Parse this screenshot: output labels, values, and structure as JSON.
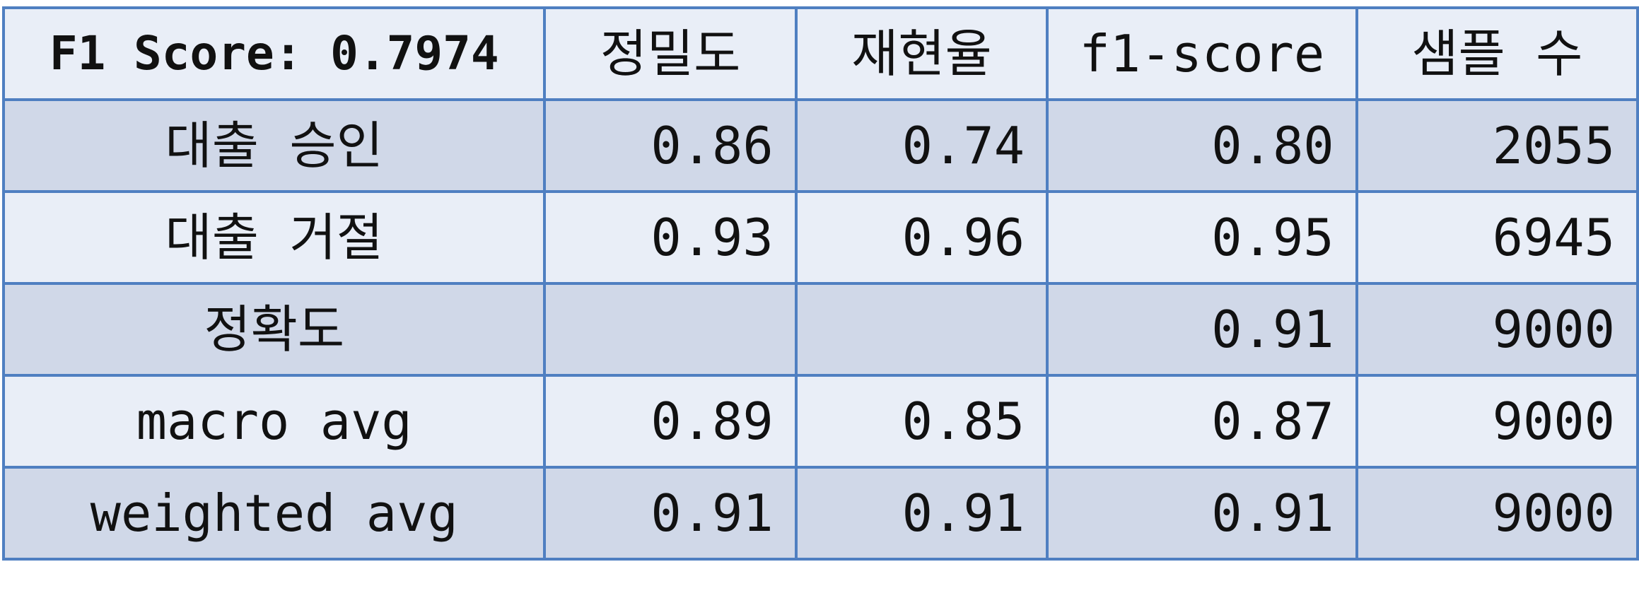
{
  "chart_data": {
    "type": "table",
    "title": "F1 Score: 0.7974",
    "columns": [
      "정밀도",
      "재현율",
      "f1-score",
      "샘플 수"
    ],
    "rows": [
      {
        "label": "대출 승인",
        "cells": [
          "0.86",
          "0.74",
          "0.80",
          "2055"
        ]
      },
      {
        "label": "대출 거절",
        "cells": [
          "0.93",
          "0.96",
          "0.95",
          "6945"
        ]
      },
      {
        "label": "정확도",
        "cells": [
          "",
          "",
          "0.91",
          "9000"
        ]
      },
      {
        "label": "macro avg",
        "cells": [
          "0.89",
          "0.85",
          "0.87",
          "9000"
        ]
      },
      {
        "label": "weighted avg",
        "cells": [
          "0.91",
          "0.91",
          "0.91",
          "9000"
        ]
      }
    ],
    "colors": {
      "border": "#4f7fc1",
      "header_bg": "#e9eef7",
      "band_dark": "#d0d8e8",
      "band_light": "#e9eef7"
    }
  }
}
